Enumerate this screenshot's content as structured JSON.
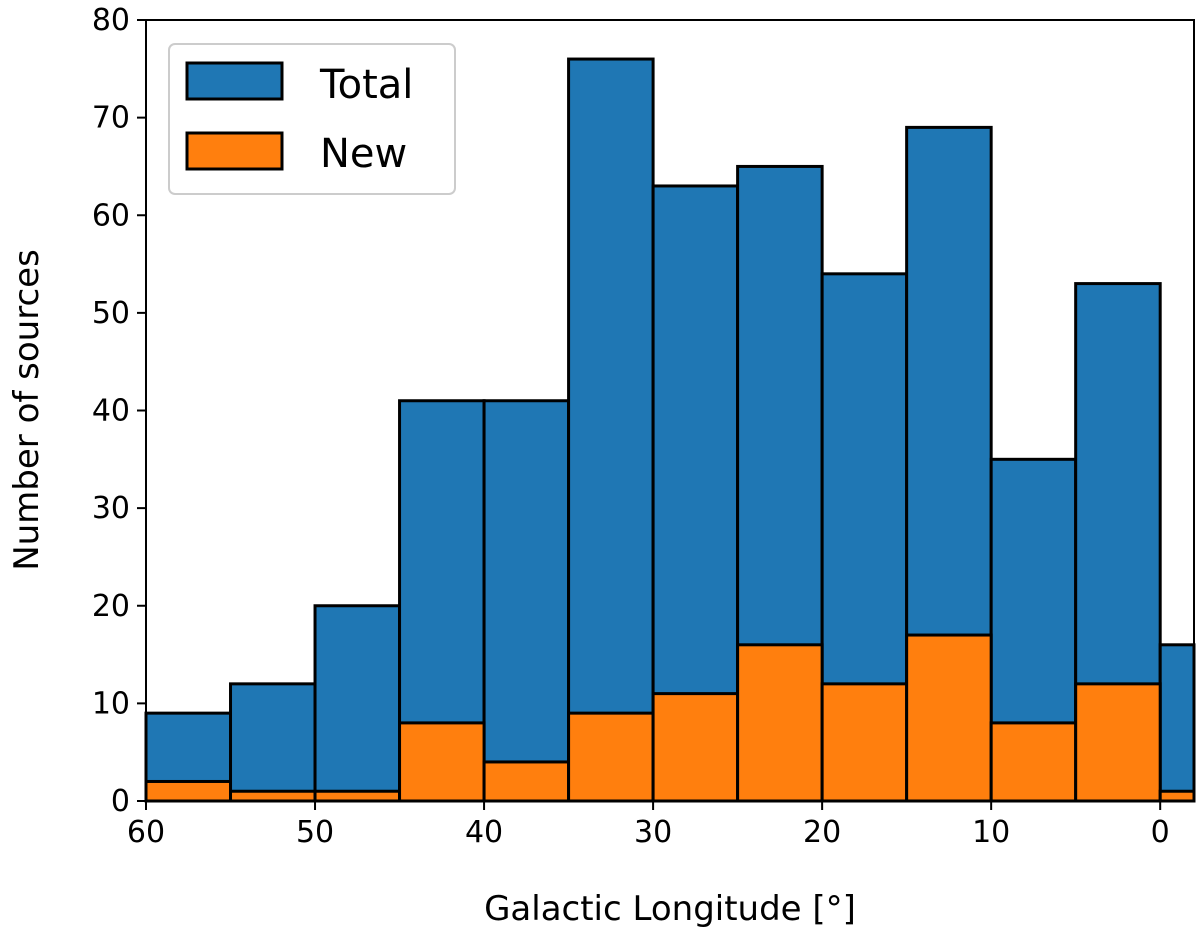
{
  "chart_data": {
    "type": "bar",
    "subtype": "overlaid-histogram",
    "title": "",
    "xlabel": "Galactic Longitude [$^\\circ$]",
    "xlabel_text": "Galactic Longitude [°]",
    "ylabel": "Number of sources",
    "xlim": [
      60,
      -2
    ],
    "ylim": [
      0,
      80
    ],
    "x_ticks": [
      60,
      50,
      40,
      30,
      20,
      10,
      0
    ],
    "y_ticks": [
      0,
      10,
      20,
      30,
      40,
      50,
      60,
      70,
      80
    ],
    "grid": false,
    "legend_position": "upper-left",
    "bins": [
      [
        60,
        55
      ],
      [
        55,
        50
      ],
      [
        50,
        45
      ],
      [
        45,
        40
      ],
      [
        40,
        35
      ],
      [
        35,
        30
      ],
      [
        30,
        25
      ],
      [
        25,
        20
      ],
      [
        20,
        15
      ],
      [
        15,
        10
      ],
      [
        10,
        5
      ],
      [
        5,
        0
      ],
      [
        0,
        -2
      ]
    ],
    "series": [
      {
        "name": "Total",
        "color": "#1f77b4",
        "values": [
          9,
          12,
          20,
          41,
          41,
          76,
          63,
          65,
          54,
          69,
          35,
          53,
          16
        ]
      },
      {
        "name": "New",
        "color": "#ff7f0e",
        "values": [
          2,
          1,
          1,
          8,
          4,
          9,
          11,
          16,
          12,
          17,
          8,
          12,
          1
        ]
      }
    ]
  }
}
